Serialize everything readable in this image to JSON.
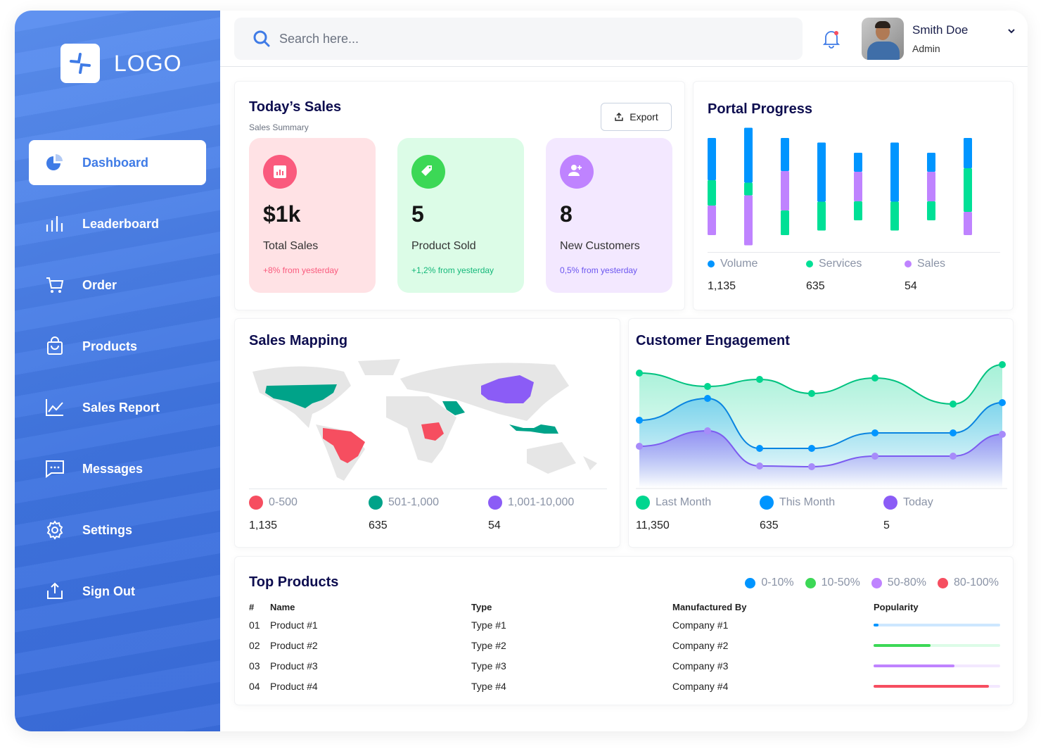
{
  "brand": {
    "logo_text": "LOGO"
  },
  "sidebar": {
    "items": [
      {
        "label": "Dashboard",
        "icon": "pie-chart-icon",
        "active": true
      },
      {
        "label": "Leaderboard",
        "icon": "bar-chart-icon"
      },
      {
        "label": "Order",
        "icon": "cart-icon"
      },
      {
        "label": "Products",
        "icon": "shopping-bag-icon"
      },
      {
        "label": "Sales Report",
        "icon": "line-chart-icon"
      },
      {
        "label": "Messages",
        "icon": "message-icon"
      },
      {
        "label": "Settings",
        "icon": "gear-icon"
      },
      {
        "label": "Sign Out",
        "icon": "sign-out-icon"
      }
    ]
  },
  "topbar": {
    "search_placeholder": "Search here...",
    "user": {
      "name": "Smith Doe",
      "role": "Admin"
    },
    "notification_dot": true
  },
  "todays_sales": {
    "title": "Today’s Sales",
    "subtitle": "Sales Summary",
    "export_label": "Export",
    "stats": [
      {
        "value": "$1k",
        "label": "Total Sales",
        "change": "+8% from yesterday",
        "icon": "bar-chart-icon",
        "color": "#fa5a7d",
        "bg": "#ffe2e5",
        "change_color": "#fa5a7d"
      },
      {
        "value": "5",
        "label": "Product Sold",
        "change": "+1,2% from yesterday",
        "icon": "tag-icon",
        "color": "#3cd856",
        "bg": "#dcfce7",
        "change_color": "#14b87a"
      },
      {
        "value": "8",
        "label": "New Customers",
        "change": "0,5% from yesterday",
        "icon": "add-user-icon",
        "color": "#bf83ff",
        "bg": "#f3e8ff",
        "change_color": "#6b55f0"
      }
    ]
  },
  "portal_progress": {
    "title": "Portal Progress",
    "legend": [
      {
        "name": "Volume",
        "value": "1,135",
        "color": "#0095ff"
      },
      {
        "name": "Services",
        "value": "635",
        "color": "#00e096"
      },
      {
        "name": "Sales",
        "value": "54",
        "color": "#bf83ff"
      }
    ]
  },
  "sales_mapping": {
    "title": "Sales Mapping",
    "legend": [
      {
        "name": "0-500",
        "value": "1,135",
        "color": "#f64e60"
      },
      {
        "name": "501-1,000",
        "value": "635",
        "color": "#00a389"
      },
      {
        "name": "1,001-10,000",
        "value": "54",
        "color": "#8b5cf6"
      }
    ]
  },
  "customer_engagement": {
    "title": "Customer Engagement",
    "legend": [
      {
        "name": "Last Month",
        "value": "11,350",
        "color": "#00d68f"
      },
      {
        "name": "This Month",
        "value": "635",
        "color": "#0095ff"
      },
      {
        "name": "Today",
        "value": "5",
        "color": "#8b5cf6"
      }
    ]
  },
  "top_products": {
    "title": "Top Products",
    "legend": [
      {
        "name": "0-10%",
        "color": "#0095ff"
      },
      {
        "name": "10-50%",
        "color": "#3cd856"
      },
      {
        "name": "50-80%",
        "color": "#bf83ff"
      },
      {
        "name": "80-100%",
        "color": "#f64e60"
      }
    ],
    "columns": [
      "#",
      "Name",
      "Type",
      "Manufactured By",
      "Popularity"
    ],
    "rows": [
      {
        "num": "01",
        "name": "Product #1",
        "type": "Type #1",
        "maker": "Company #1",
        "popularity": 0.04,
        "color": "#0095ff",
        "track": "#cde7ff"
      },
      {
        "num": "02",
        "name": "Product #2",
        "type": "Type #2",
        "maker": "Company #2",
        "popularity": 0.45,
        "color": "#3cd856",
        "track": "#dcfce7"
      },
      {
        "num": "03",
        "name": "Product #3",
        "type": "Type #3",
        "maker": "Company #3",
        "popularity": 0.64,
        "color": "#bf83ff",
        "track": "#f3e8ff"
      },
      {
        "num": "04",
        "name": "Product #4",
        "type": "Type #4",
        "maker": "Company #4",
        "popularity": 0.91,
        "color": "#f64e60",
        "track": "#f3e8ff"
      }
    ]
  },
  "chart_data": [
    {
      "type": "bar",
      "stacked": true,
      "title": "Portal Progress",
      "series_order_note": "segments listed top to bottom",
      "bars": [
        [
          [
            "Volume",
            60
          ],
          [
            "Services",
            36
          ],
          [
            "Sales",
            42
          ]
        ],
        [
          [
            "Volume",
            78
          ],
          [
            "Services",
            18
          ],
          [
            "Sales",
            71
          ]
        ],
        [
          [
            "Volume",
            47
          ],
          [
            "Sales",
            56
          ],
          [
            "Services",
            35
          ]
        ],
        [
          [
            "Volume",
            84
          ],
          [
            "Services",
            41
          ]
        ],
        [
          [
            "Volume",
            27
          ],
          [
            "Sales",
            42
          ],
          [
            "Services",
            27
          ]
        ],
        [
          [
            "Volume",
            84
          ],
          [
            "Services",
            41
          ]
        ],
        [
          [
            "Volume",
            27
          ],
          [
            "Sales",
            42
          ],
          [
            "Services",
            27
          ]
        ],
        [
          [
            "Volume",
            43
          ],
          [
            "Services",
            62
          ],
          [
            "Sales",
            33
          ]
        ]
      ]
    },
    {
      "type": "area",
      "title": "Customer Engagement",
      "x": [
        1,
        2,
        3,
        4,
        5,
        6,
        7
      ],
      "series": [
        {
          "name": "Last Month",
          "values": [
            163,
            144,
            154,
            134,
            156,
            119,
            175
          ],
          "color": "#00d68f"
        },
        {
          "name": "This Month",
          "values": [
            96,
            127,
            56,
            56,
            78,
            78,
            121
          ],
          "color": "#0095ff"
        },
        {
          "name": "Today",
          "values": [
            59,
            81,
            31,
            30,
            45,
            45,
            76
          ],
          "color": "#8b5cf6"
        }
      ]
    }
  ]
}
